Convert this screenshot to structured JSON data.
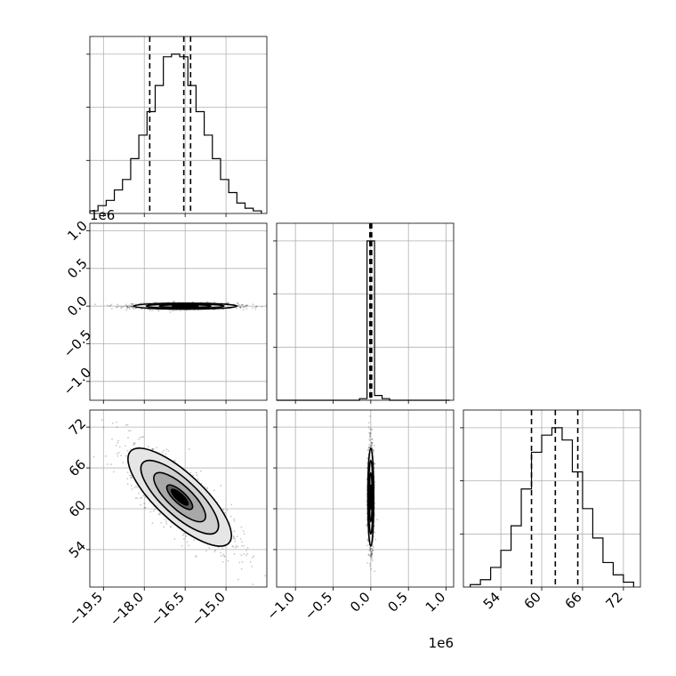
{
  "chart_data": {
    "type": "corner",
    "parameters": [
      {
        "index": 0,
        "range": [
          -20.0,
          -13.5
        ],
        "ticks": [
          -19.5,
          -18.0,
          -16.5,
          -15.0
        ],
        "tick_labels": [
          "−19.5",
          "−18.0",
          "−16.5",
          "−15.0"
        ],
        "quantiles": [
          -17.8,
          -16.55,
          -16.3
        ],
        "offset_text": ""
      },
      {
        "index": 1,
        "range": [
          -1.25,
          1.1
        ],
        "ticks": [
          -1.0,
          -0.5,
          0.0,
          0.5,
          1.0
        ],
        "tick_labels": [
          "−1.0",
          "−0.5",
          "0.0",
          "0.5",
          "1.0"
        ],
        "quantiles": [
          -0.012,
          0.0,
          0.012
        ],
        "offset_text": "1e6"
      },
      {
        "index": 2,
        "range": [
          48.5,
          74.5
        ],
        "ticks": [
          54,
          60,
          66,
          72
        ],
        "tick_labels": [
          "54",
          "60",
          "66",
          "72"
        ],
        "quantiles": [
          58.5,
          62.0,
          65.3
        ],
        "offset_text": ""
      }
    ],
    "histograms": [
      {
        "parameter": 0,
        "bin_edges": [
          -20.0,
          -19.7,
          -19.4,
          -19.1,
          -18.8,
          -18.5,
          -18.2,
          -17.9,
          -17.6,
          -17.3,
          -17.0,
          -16.7,
          -16.4,
          -16.1,
          -15.8,
          -15.5,
          -15.2,
          -14.9,
          -14.6,
          -14.3,
          -14.0,
          -13.7
        ],
        "counts": [
          1,
          3,
          5,
          9,
          13,
          21,
          30,
          39,
          49,
          60,
          61,
          60,
          49,
          39,
          30,
          21,
          13,
          8,
          4,
          2,
          1
        ]
      },
      {
        "parameter": 1,
        "bin_edges": [
          -1.25,
          -1.15,
          -1.05,
          -0.95,
          -0.85,
          -0.75,
          -0.65,
          -0.55,
          -0.45,
          -0.35,
          -0.25,
          -0.15,
          -0.05,
          0.05,
          0.15,
          0.25,
          0.35,
          0.45,
          0.55,
          0.65,
          0.75,
          0.85,
          0.95,
          1.05
        ],
        "counts": [
          0,
          0,
          0,
          0,
          0,
          0,
          0,
          0,
          0,
          0,
          0,
          1,
          100,
          3,
          1,
          0,
          0,
          0,
          0,
          0,
          0,
          0,
          0
        ]
      },
      {
        "parameter": 2,
        "bin_edges": [
          49.5,
          51.0,
          52.5,
          54.0,
          55.5,
          57.0,
          58.5,
          60.0,
          61.5,
          63.0,
          64.5,
          66.0,
          67.5,
          69.0,
          70.5,
          72.0,
          73.5
        ],
        "counts": [
          1,
          3,
          8,
          15,
          25,
          40,
          55,
          62,
          65,
          60,
          47,
          32,
          20,
          10,
          5,
          2
        ]
      }
    ],
    "pairs": [
      {
        "x_param": 0,
        "y_param": 1,
        "center": [
          -16.5,
          0.0
        ],
        "sd": [
          0.95,
          0.02
        ],
        "corr": 0.0,
        "points": 1400
      },
      {
        "x_param": 0,
        "y_param": 2,
        "center": [
          -16.7,
          61.7
        ],
        "sd": [
          0.95,
          3.6
        ],
        "corr": -0.78,
        "points": 1400
      },
      {
        "x_param": 1,
        "y_param": 2,
        "center": [
          0.0,
          61.7
        ],
        "sd": [
          0.02,
          3.6
        ],
        "corr": 0.0,
        "points": 1400
      }
    ],
    "contour_levels": [
      0.5,
      1.0,
      1.5,
      2.0
    ],
    "grid": true,
    "colors": {
      "marks": "#000000",
      "grid": "#b0b0b0",
      "background": "#ffffff"
    }
  }
}
